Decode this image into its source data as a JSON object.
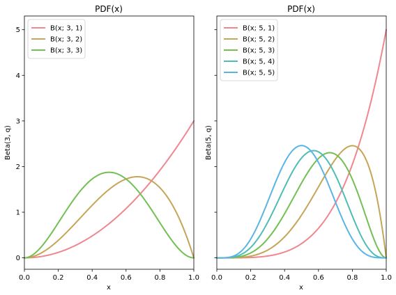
{
  "chart_data": [
    {
      "type": "line",
      "title": "PDF(x)",
      "xlabel": "x",
      "ylabel": "Beta(3, q)",
      "xlim": [
        0.0,
        1.0
      ],
      "ylim": [
        -0.25,
        5.3
      ],
      "xticks": [
        "0.0",
        "0.2",
        "0.4",
        "0.6",
        "0.8",
        "1.0"
      ],
      "yticks": [
        "0",
        "1",
        "2",
        "3",
        "4",
        "5"
      ],
      "legend_position": "upper-left",
      "grid": false,
      "series": [
        {
          "name": "B(x; 3, 1)",
          "p": 3,
          "q": 1,
          "color": "#f0868e"
        },
        {
          "name": "B(x; 3, 2)",
          "p": 3,
          "q": 2,
          "color": "#c5a557"
        },
        {
          "name": "B(x; 3, 3)",
          "p": 3,
          "q": 3,
          "color": "#72bf52"
        }
      ]
    },
    {
      "type": "line",
      "title": "PDF(x)",
      "xlabel": "x",
      "ylabel": "Beta(5, q)",
      "xlim": [
        0.0,
        1.0
      ],
      "ylim": [
        -0.25,
        5.3
      ],
      "xticks": [
        "0.0",
        "0.2",
        "0.4",
        "0.6",
        "0.8",
        "1.0"
      ],
      "yticks": [
        "0",
        "1",
        "2",
        "3",
        "4",
        "5"
      ],
      "legend_position": "upper-left",
      "grid": false,
      "series": [
        {
          "name": "B(x; 5, 1)",
          "p": 5,
          "q": 1,
          "color": "#f0868e"
        },
        {
          "name": "B(x; 5, 2)",
          "p": 5,
          "q": 2,
          "color": "#c5a557"
        },
        {
          "name": "B(x; 5, 3)",
          "p": 5,
          "q": 3,
          "color": "#72bf52"
        },
        {
          "name": "B(x; 5, 4)",
          "p": 5,
          "q": 4,
          "color": "#4fbcb5"
        },
        {
          "name": "B(x; 5, 5)",
          "p": 5,
          "q": 5,
          "color": "#5ab4e5"
        }
      ]
    }
  ]
}
